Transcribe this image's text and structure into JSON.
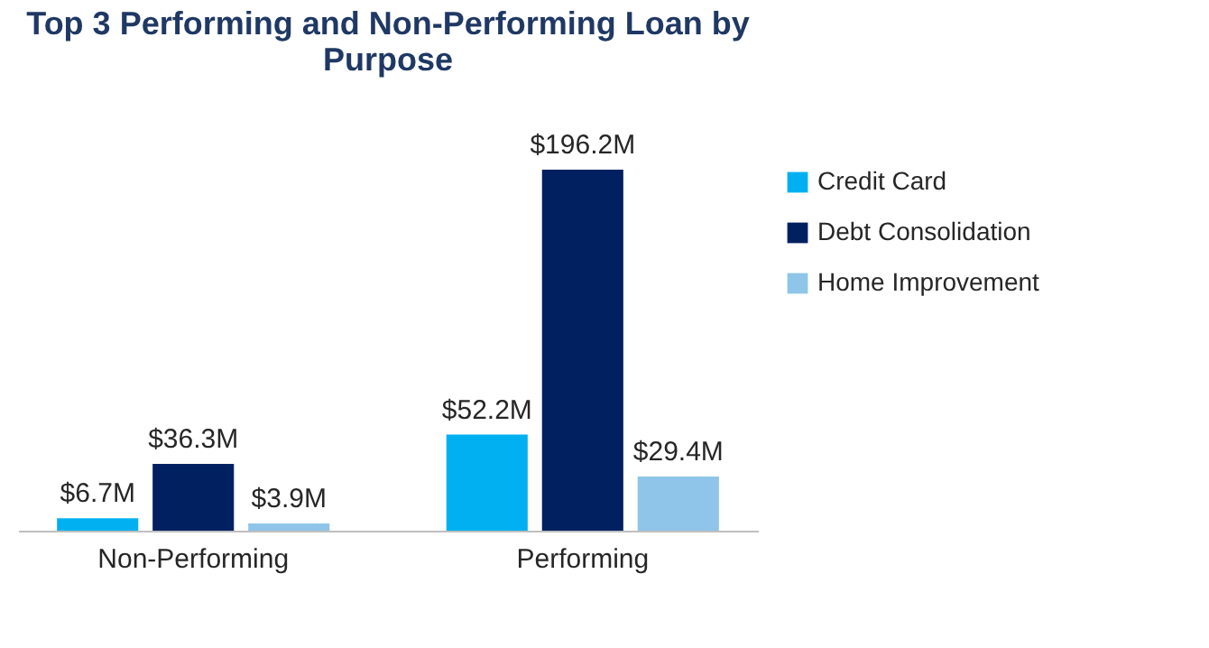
{
  "chart_data": {
    "type": "bar",
    "title": "Top 3 Performing and Non-Performing Loan by Purpose",
    "categories": [
      "Non-Performing",
      "Performing"
    ],
    "series": [
      {
        "name": "Credit Card",
        "color": "#00b0f0",
        "values": [
          6.7,
          52.2
        ],
        "value_labels": [
          "$6.7M",
          "$52.2M"
        ]
      },
      {
        "name": "Debt Consolidation",
        "color": "#002060",
        "values": [
          36.3,
          196.2
        ],
        "value_labels": [
          "$36.3M",
          "$196.2M"
        ]
      },
      {
        "name": "Home Improvement",
        "color": "#8fc5e8",
        "values": [
          3.9,
          29.4
        ],
        "value_labels": [
          "$3.9M",
          "$29.4M"
        ]
      }
    ],
    "legend": "right",
    "tick_labels": "x"
  }
}
